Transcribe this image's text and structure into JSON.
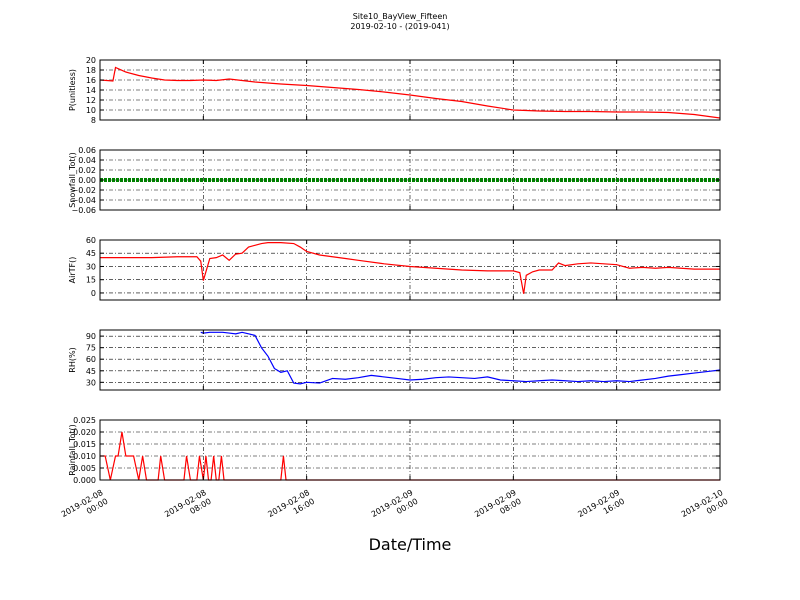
{
  "title": "Site10_BayView_Fifteen",
  "subtitle": "2019-02-10 - (2019-041)",
  "xlabel": "Date/Time",
  "x_ticks": [
    {
      "t": 0,
      "line1": "2019-02-08",
      "line2": "00:00"
    },
    {
      "t": 8,
      "line1": "2019-02-08",
      "line2": "08:00"
    },
    {
      "t": 16,
      "line1": "2019-02-08",
      "line2": "16:00"
    },
    {
      "t": 24,
      "line1": "2019-02-09",
      "line2": "00:00"
    },
    {
      "t": 32,
      "line1": "2019-02-09",
      "line2": "08:00"
    },
    {
      "t": 40,
      "line1": "2019-02-09",
      "line2": "16:00"
    },
    {
      "t": 48,
      "line1": "2019-02-10",
      "line2": "00:00"
    }
  ],
  "chart_data": [
    {
      "type": "line",
      "ylabel": "P(unitless)",
      "ylim": [
        8,
        20
      ],
      "yticks": [
        8,
        10,
        12,
        14,
        16,
        18,
        20
      ],
      "ytick_labels": [
        "8",
        "10",
        "12",
        "14",
        "16",
        "18",
        "20"
      ],
      "color": "#ff0000",
      "grid": true,
      "x": [
        0,
        1,
        1.2,
        2,
        3,
        4,
        5,
        6,
        7,
        8,
        9,
        10,
        12,
        14,
        16,
        18,
        20,
        22,
        24,
        26,
        28,
        30,
        32,
        34,
        36,
        38,
        40,
        42,
        44,
        46,
        48
      ],
      "y": [
        16,
        15.8,
        18.5,
        17.6,
        16.9,
        16.4,
        16.0,
        15.9,
        15.9,
        16.0,
        15.9,
        16.2,
        15.6,
        15.2,
        14.9,
        14.5,
        14.1,
        13.6,
        13.0,
        12.3,
        11.7,
        10.8,
        10.0,
        9.8,
        9.7,
        9.7,
        9.6,
        9.6,
        9.5,
        9.1,
        8.4
      ]
    },
    {
      "type": "line",
      "ylabel": "Snowfall_Tot()",
      "ylim": [
        -0.06,
        0.06
      ],
      "yticks": [
        -0.06,
        -0.04,
        -0.02,
        0.0,
        0.02,
        0.04,
        0.06
      ],
      "ytick_labels": [
        "−0.06",
        "−0.04",
        "−0.02",
        "0.00",
        "0.02",
        "0.04",
        "0.06"
      ],
      "color": "#008000",
      "grid": true,
      "x": [
        0,
        48
      ],
      "y": [
        0,
        0
      ]
    },
    {
      "type": "line",
      "ylabel": "AirTF()",
      "ylim": [
        -8,
        60
      ],
      "yticks": [
        0,
        15,
        30,
        45,
        60
      ],
      "ytick_labels": [
        "0",
        "15",
        "30",
        "45",
        "60"
      ],
      "color": "#ff0000",
      "grid": true,
      "x": [
        0,
        2,
        4,
        6,
        7.5,
        7.8,
        8.0,
        8.5,
        9.0,
        9.5,
        10.0,
        10.5,
        11.0,
        11.5,
        12.0,
        12.5,
        13,
        14,
        15,
        15.5,
        16,
        17,
        18,
        19,
        20,
        22,
        24,
        26,
        28,
        30,
        32,
        32.5,
        32.8,
        33.0,
        33.5,
        34.0,
        35.0,
        35.5,
        36.0,
        37,
        38,
        39,
        40,
        41,
        42,
        43,
        44,
        45,
        46,
        47,
        48
      ],
      "y": [
        40,
        40,
        40,
        41,
        41,
        36,
        14,
        39,
        40,
        43,
        37,
        44,
        45,
        52,
        54,
        56,
        57,
        57,
        56,
        52,
        47,
        43,
        41,
        39,
        37,
        33,
        30,
        28,
        26,
        25,
        25,
        23,
        -1,
        20,
        24,
        26,
        26,
        34,
        31,
        33,
        34,
        33,
        32,
        28,
        29,
        28,
        29,
        28,
        27,
        27,
        27
      ]
    },
    {
      "type": "line",
      "ylabel": "RH(%)",
      "ylim": [
        20,
        98
      ],
      "yticks": [
        30,
        45,
        60,
        75,
        90
      ],
      "ytick_labels": [
        "30",
        "45",
        "60",
        "75",
        "90"
      ],
      "color": "#0000ff",
      "grid": true,
      "x": [
        7.8,
        8.0,
        8.5,
        9.0,
        9.5,
        10.0,
        10.5,
        11.0,
        11.5,
        12,
        12.5,
        13.0,
        13.5,
        14.0,
        14.5,
        15.0,
        15.5,
        16.0,
        17,
        18,
        19,
        20,
        21,
        22,
        23,
        24,
        25,
        26,
        27,
        28,
        29,
        30,
        31,
        32,
        33,
        34,
        35,
        36,
        37,
        38,
        39,
        40,
        41,
        42,
        43,
        44,
        45,
        46,
        47,
        48
      ],
      "y": [
        95,
        94,
        95,
        95,
        95,
        94,
        93,
        95,
        93,
        91,
        75,
        64,
        48,
        43,
        45,
        29,
        28,
        30,
        29,
        35,
        34,
        36,
        39,
        37,
        35,
        33,
        34,
        36,
        37,
        36,
        35,
        37,
        33,
        32,
        31,
        32,
        33,
        32,
        31,
        32,
        31,
        32,
        31,
        33,
        35,
        38,
        40,
        42,
        44,
        46
      ]
    },
    {
      "type": "line",
      "ylabel": "Rainfall_Tot()",
      "ylim": [
        0,
        0.025
      ],
      "yticks": [
        0.0,
        0.005,
        0.01,
        0.015,
        0.02,
        0.025
      ],
      "ytick_labels": [
        "0.000",
        "0.005",
        "0.010",
        "0.015",
        "0.020",
        "0.025"
      ],
      "color": "#ff0000",
      "grid": true,
      "x": [
        0,
        0.4,
        0.8,
        1.2,
        1.4,
        1.7,
        2.0,
        2.3,
        2.6,
        3.0,
        3.3,
        3.6,
        4.0,
        4.5,
        4.7,
        5.0,
        6.5,
        6.7,
        7.0,
        7.5,
        7.7,
        8.0,
        8.2,
        8.4,
        8.6,
        8.8,
        9.0,
        9.2,
        9.4,
        9.6,
        9.8,
        10.0,
        14.0,
        14.2,
        14.4,
        48
      ],
      "y": [
        0.01,
        0.01,
        0,
        0.01,
        0.01,
        0.02,
        0.01,
        0.01,
        0.01,
        0,
        0.01,
        0,
        0,
        0,
        0.01,
        0,
        0,
        0.01,
        0,
        0,
        0.01,
        0,
        0.01,
        0,
        0,
        0.01,
        0,
        0,
        0.01,
        0,
        0,
        0,
        0,
        0.01,
        0,
        0
      ]
    }
  ]
}
